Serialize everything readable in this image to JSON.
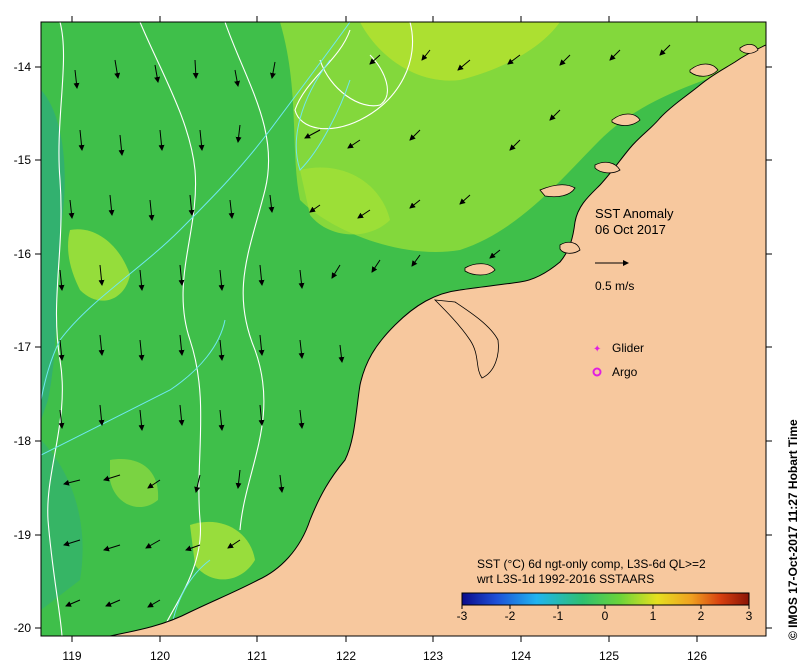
{
  "map": {
    "title": "SST Anomaly",
    "date": "06 Oct 2017",
    "vector_scale_label": "0.5 m/s",
    "legend": {
      "glider": "Glider",
      "argo": "Argo"
    },
    "colorbar": {
      "line1": "SST (°C) 6d ngt-only comp, L3S-6d QL>=2",
      "line2": "wrt L3S-1d 1992-2016 SSTAARS",
      "ticks": [
        "-3",
        "-2",
        "-1",
        "0",
        "1",
        "2",
        "3"
      ],
      "colors": [
        "#0a0a8a",
        "#1e50d8",
        "#20b4f0",
        "#2ec070",
        "#6bd43a",
        "#e6e020",
        "#f0a020",
        "#d84010",
        "#8a1406"
      ]
    },
    "credit": "© IMOS 17-Oct-2017 11:27 Hobart Time",
    "x_ticks": [
      "119",
      "120",
      "121",
      "122",
      "123",
      "124",
      "125",
      "126"
    ],
    "y_ticks": [
      "-14",
      "-15",
      "-16",
      "-17",
      "-18",
      "-19",
      "-20"
    ],
    "land_color": "#f7c89e",
    "ocean_color": "#3fbf4a",
    "warm_patch_color": "#9ee03a",
    "cool_patch_color": "#2fae78"
  }
}
